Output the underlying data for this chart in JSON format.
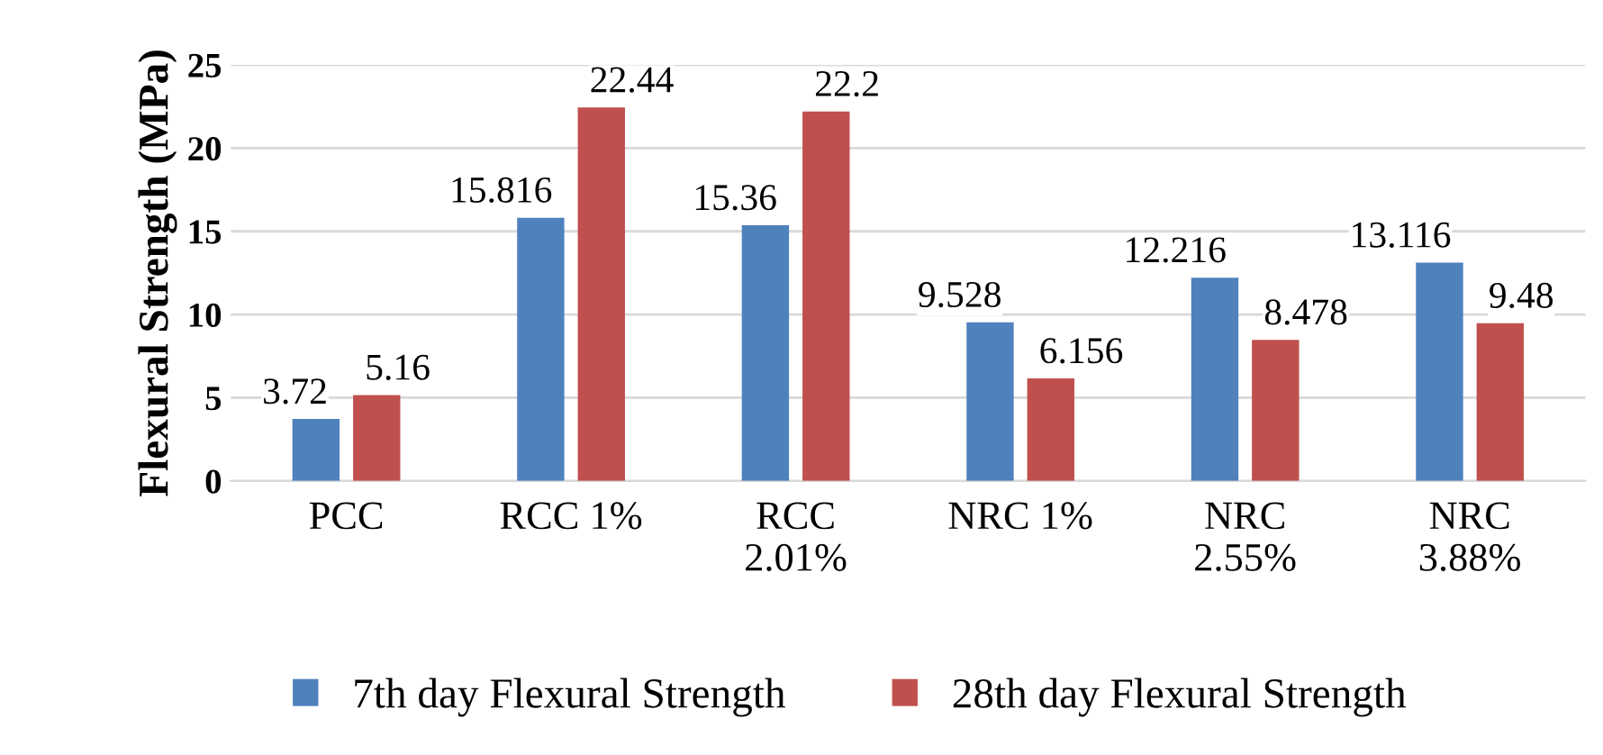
{
  "chart_data": {
    "type": "bar",
    "ylabel": "Flexural Strength (MPa)",
    "categories": [
      "PCC",
      "RCC 1%",
      "RCC\n2.01%",
      "NRC 1%",
      "NRC\n2.55%",
      "NRC\n3.88%"
    ],
    "series": [
      {
        "name": "7th day Flexural Strength",
        "color": "#4f81bd",
        "values": [
          3.72,
          15.816,
          15.36,
          9.528,
          12.216,
          13.116
        ]
      },
      {
        "name": "28th day Flexural Strength",
        "color": "#c0504d",
        "values": [
          5.16,
          22.44,
          22.2,
          6.156,
          8.478,
          9.48
        ]
      }
    ],
    "ylim": [
      0,
      25
    ],
    "yticks": [
      0,
      5,
      10,
      15,
      20,
      25
    ],
    "grid": "y",
    "legend": "bottom",
    "data_labels": true
  }
}
